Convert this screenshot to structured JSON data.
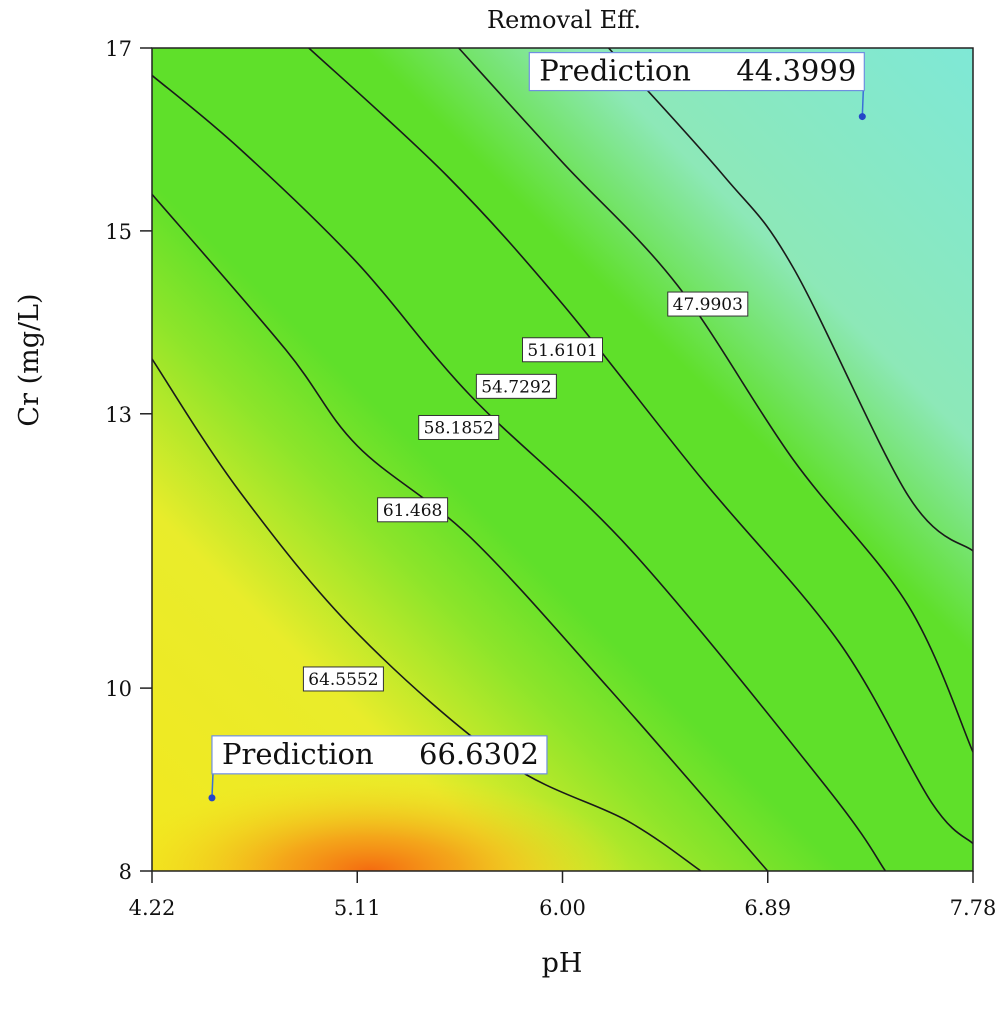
{
  "chart_data": {
    "type": "contour",
    "title": "Removal Eff.",
    "xlabel": "pH",
    "ylabel": "Cr (mg/L)",
    "xlim": [
      4.22,
      7.78
    ],
    "ylim": [
      8,
      17
    ],
    "x_ticks": [
      "4.22",
      "5.11",
      "6.00",
      "6.89",
      "7.78"
    ],
    "y_ticks": [
      "8",
      "10",
      "13",
      "15",
      "17"
    ],
    "y_tick_values": [
      8,
      10,
      13,
      15,
      17
    ],
    "colors": {
      "low": "#7fe8d6",
      "mid": "#5fe02a",
      "high": "#e8ec2c",
      "peak": "#f47a10"
    },
    "contours": [
      {
        "level": "64.5552",
        "points": [
          [
            4.22,
            13.6
          ],
          [
            4.6,
            12.15
          ],
          [
            5.11,
            10.6
          ],
          [
            5.75,
            9.2
          ],
          [
            6.28,
            8.55
          ],
          [
            6.6,
            8.0
          ]
        ]
      },
      {
        "level": "61.468",
        "points": [
          [
            4.22,
            15.4
          ],
          [
            4.8,
            13.7
          ],
          [
            5.11,
            12.65
          ],
          [
            5.6,
            11.65
          ],
          [
            6.2,
            10.0
          ],
          [
            6.89,
            8.0
          ]
        ]
      },
      {
        "level": "58.1852",
        "points": [
          [
            4.22,
            16.7
          ],
          [
            4.6,
            15.9
          ],
          [
            5.11,
            14.65
          ],
          [
            5.6,
            13.2
          ],
          [
            6.3,
            11.5
          ],
          [
            7.15,
            8.9
          ],
          [
            7.4,
            8.0
          ]
        ]
      },
      {
        "level": "54.7292",
        "points": [
          [
            4.9,
            17.0
          ],
          [
            5.5,
            15.6
          ],
          [
            6.0,
            14.2
          ],
          [
            6.6,
            12.3
          ],
          [
            7.2,
            10.5
          ],
          [
            7.6,
            8.75
          ],
          [
            7.78,
            8.3
          ]
        ]
      },
      {
        "level": "51.6101",
        "points": [
          [
            5.55,
            17.0
          ],
          [
            6.0,
            15.75
          ],
          [
            6.5,
            14.4
          ],
          [
            7.0,
            12.5
          ],
          [
            7.5,
            10.9
          ],
          [
            7.78,
            9.3
          ]
        ]
      },
      {
        "level": "47.9903",
        "points": [
          [
            6.2,
            17.0
          ],
          [
            6.7,
            15.6
          ],
          [
            7.0,
            14.6
          ],
          [
            7.5,
            12.1
          ],
          [
            7.78,
            11.5
          ]
        ]
      }
    ],
    "contour_label_positions": [
      [
        5.05,
        10.1
      ],
      [
        5.35,
        11.95
      ],
      [
        5.55,
        12.85
      ],
      [
        5.8,
        13.3
      ],
      [
        6.0,
        13.7
      ],
      [
        6.63,
        14.2
      ]
    ],
    "predictions": [
      {
        "label": "Prediction",
        "value": "66.6302",
        "x": 4.48,
        "y": 8.8
      },
      {
        "label": "Prediction",
        "value": "44.3999",
        "x": 7.3,
        "y": 16.25
      }
    ]
  }
}
